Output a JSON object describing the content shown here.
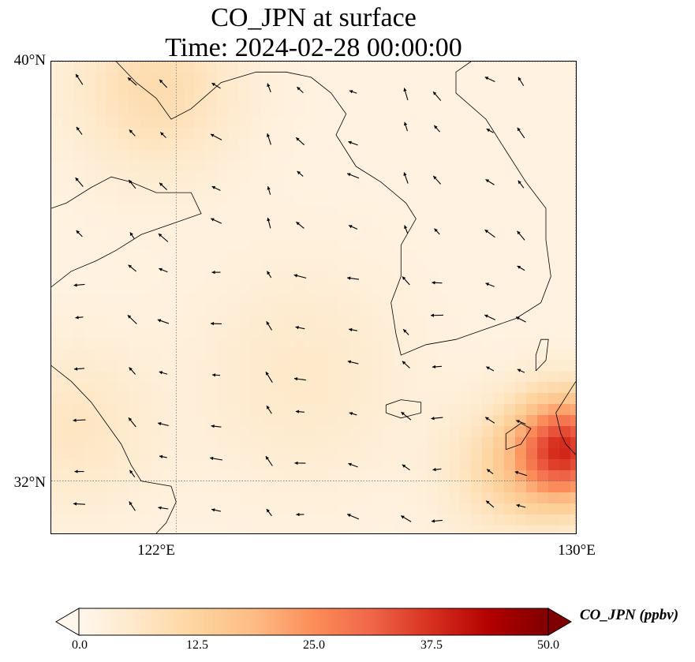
{
  "title": {
    "line1": "CO_JPN at surface",
    "line2": "Time: 2024-02-28 00:00:00"
  },
  "map": {
    "extent": {
      "lon_min": 119.5,
      "lon_max": 130.0,
      "lat_min": 31.0,
      "lat_max": 40.0
    },
    "gridlines": {
      "lons": [
        122,
        130
      ],
      "lats": [
        32,
        40
      ],
      "lon_labels": [
        "122°E",
        "130°E"
      ],
      "lat_labels": [
        "32°N",
        "40°N"
      ],
      "style": "dotted"
    },
    "field": {
      "variable": "CO_JPN",
      "units": "ppbv",
      "colormap": "OrRd",
      "vmin": 0.0,
      "vmax": 50.0,
      "background_value": 2,
      "plumes": [
        {
          "lon": 129.8,
          "lat": 32.6,
          "value": 34,
          "radius_deg": 1.0
        },
        {
          "lon": 128.6,
          "lat": 32.2,
          "value": 8,
          "radius_deg": 1.2
        },
        {
          "lon": 121.6,
          "lat": 39.5,
          "value": 8,
          "radius_deg": 1.6
        },
        {
          "lon": 120.0,
          "lat": 33.0,
          "value": 5,
          "radius_deg": 1.5
        },
        {
          "lon": 124.5,
          "lat": 34.0,
          "value": 4,
          "radius_deg": 2.0
        }
      ]
    },
    "coastlines": [
      {
        "name": "china-coast",
        "lonlat": [
          [
            119.5,
            34.2
          ],
          [
            119.9,
            33.9
          ],
          [
            120.3,
            33.5
          ],
          [
            120.6,
            33.1
          ],
          [
            120.9,
            32.7
          ],
          [
            121.1,
            32.3
          ],
          [
            121.3,
            32.0
          ],
          [
            121.9,
            31.9
          ],
          [
            122.0,
            31.6
          ],
          [
            121.8,
            31.2
          ],
          [
            121.6,
            31.0
          ]
        ]
      },
      {
        "name": "shandong-coast",
        "lonlat": [
          [
            119.5,
            35.7
          ],
          [
            119.9,
            36.0
          ],
          [
            120.4,
            36.2
          ],
          [
            120.8,
            36.4
          ],
          [
            121.3,
            36.7
          ],
          [
            121.9,
            36.9
          ],
          [
            122.5,
            37.1
          ],
          [
            122.3,
            37.5
          ],
          [
            121.6,
            37.5
          ],
          [
            121.1,
            37.7
          ],
          [
            120.7,
            37.8
          ],
          [
            120.3,
            37.6
          ],
          [
            119.8,
            37.3
          ],
          [
            119.5,
            37.2
          ]
        ]
      },
      {
        "name": "bohai-liaodong-coast",
        "lonlat": [
          [
            120.8,
            40.0
          ],
          [
            121.2,
            39.6
          ],
          [
            121.6,
            39.3
          ],
          [
            121.9,
            38.9
          ],
          [
            122.3,
            39.1
          ],
          [
            122.9,
            39.6
          ],
          [
            123.6,
            39.8
          ],
          [
            124.2,
            39.8
          ],
          [
            124.7,
            39.7
          ],
          [
            125.1,
            39.4
          ],
          [
            125.4,
            39.0
          ],
          [
            125.2,
            38.6
          ],
          [
            125.6,
            38.0
          ],
          [
            126.1,
            37.7
          ],
          [
            126.6,
            37.3
          ],
          [
            126.8,
            37.0
          ],
          [
            126.5,
            36.5
          ],
          [
            126.5,
            35.9
          ],
          [
            126.3,
            35.4
          ],
          [
            126.4,
            34.8
          ],
          [
            126.5,
            34.4
          ],
          [
            127.0,
            34.6
          ],
          [
            127.6,
            34.7
          ],
          [
            128.2,
            34.9
          ],
          [
            128.8,
            35.1
          ],
          [
            129.3,
            35.4
          ],
          [
            129.5,
            35.9
          ],
          [
            129.4,
            36.6
          ],
          [
            129.4,
            37.2
          ],
          [
            129.0,
            37.7
          ],
          [
            128.6,
            38.3
          ],
          [
            128.2,
            38.9
          ],
          [
            127.6,
            39.4
          ],
          [
            127.6,
            39.8
          ],
          [
            127.9,
            40.0
          ]
        ]
      },
      {
        "name": "jeju-island",
        "lonlat": [
          [
            126.2,
            33.3
          ],
          [
            126.5,
            33.2
          ],
          [
            126.9,
            33.3
          ],
          [
            126.9,
            33.5
          ],
          [
            126.5,
            33.55
          ],
          [
            126.2,
            33.45
          ],
          [
            126.2,
            33.3
          ]
        ]
      },
      {
        "name": "tsushima-island",
        "lonlat": [
          [
            129.2,
            34.1
          ],
          [
            129.4,
            34.3
          ],
          [
            129.45,
            34.7
          ],
          [
            129.3,
            34.7
          ],
          [
            129.2,
            34.4
          ],
          [
            129.2,
            34.1
          ]
        ]
      },
      {
        "name": "kyushu-coast",
        "lonlat": [
          [
            130.0,
            33.9
          ],
          [
            129.8,
            33.6
          ],
          [
            129.6,
            33.3
          ],
          [
            129.7,
            32.9
          ],
          [
            129.8,
            32.7
          ],
          [
            130.0,
            32.5
          ]
        ]
      },
      {
        "name": "goto-islands",
        "lonlat": [
          [
            128.6,
            32.6
          ],
          [
            128.9,
            32.7
          ],
          [
            129.1,
            33.0
          ],
          [
            128.9,
            33.1
          ],
          [
            128.6,
            32.9
          ],
          [
            128.6,
            32.6
          ]
        ]
      }
    ],
    "wind_field": {
      "grid_step_deg": 0.9,
      "base_u": -0.8,
      "base_v": 0.35
    }
  },
  "colorbar": {
    "label": "CO_JPN (ppbv)",
    "ticks": [
      "0.0",
      "12.5",
      "25.0",
      "37.5",
      "50.0"
    ],
    "tick_values": [
      0.0,
      12.5,
      25.0,
      37.5,
      50.0
    ],
    "extend": "both"
  }
}
